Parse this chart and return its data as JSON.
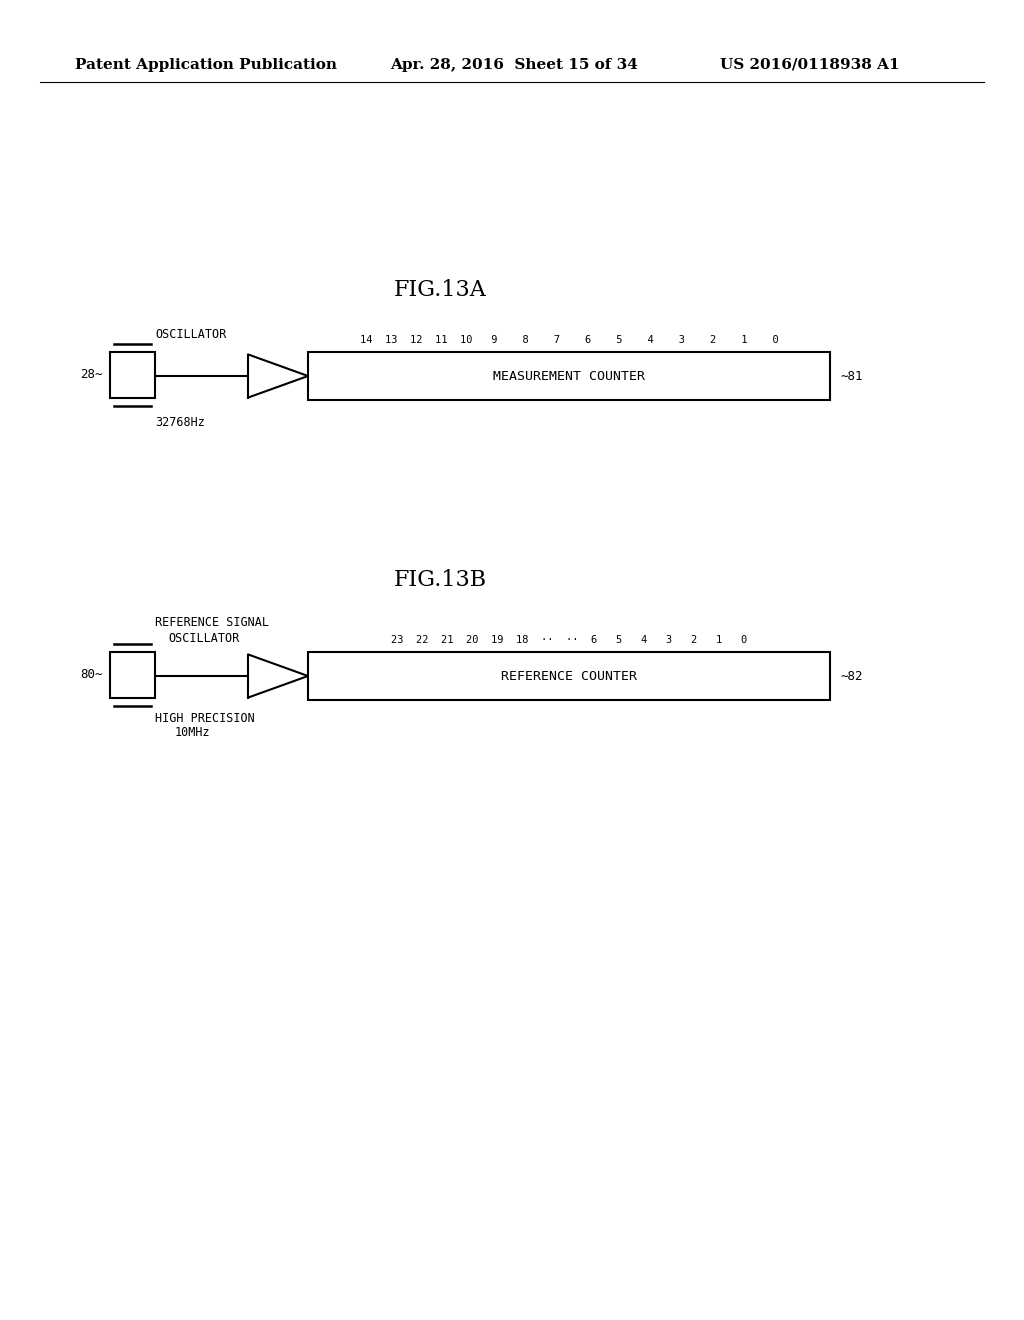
{
  "bg_color": "#ffffff",
  "header_left": "Patent Application Publication",
  "header_mid": "Apr. 28, 2016  Sheet 15 of 34",
  "header_right": "US 2016/0118938 A1",
  "line_color": "#000000",
  "text_color": "#000000",
  "font_size_header": 11,
  "font_size_title": 16,
  "font_size_label": 8.5,
  "font_size_counter": 9.5,
  "font_size_bit": 7.5,
  "font_size_ref": 9,
  "fig13a_title": "FIG.13A",
  "figA_osc_label": "OSCILLATOR",
  "figA_ref_num": "28",
  "figA_freq_label": "32768Hz",
  "figA_counter_label": "MEASUREMENT COUNTER",
  "figA_counter_num": "81",
  "figA_bit_str": "14 13 12 11 10  9   8   7   6   5   4   3   2   1   0",
  "fig13b_title": "FIG.13B",
  "figB_ref_signal_label1": "REFERENCE SIGNAL",
  "figB_ref_signal_label2": "OSCILLATOR",
  "figB_ref_num": "80",
  "figB_freq_label1": "HIGH PRECISION",
  "figB_freq_label2": "10MHz",
  "figB_counter_label": "REFERENCE COUNTER",
  "figB_counter_num": "82",
  "figB_bit_str": "23 22 21 20 19 18  ··  ··  6   5   4   3   2   1   0"
}
